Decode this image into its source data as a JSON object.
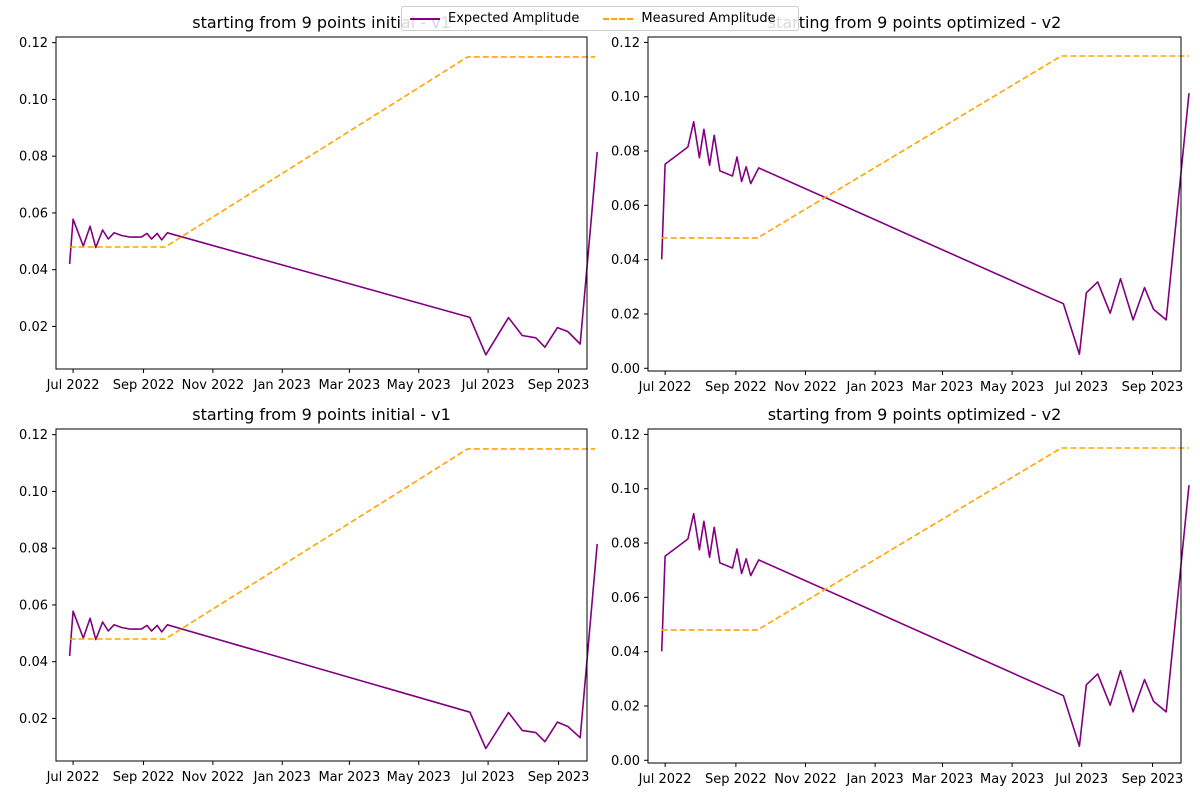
{
  "colors": {
    "expected": "#800080",
    "measured": "#FFA500"
  },
  "legend": {
    "expected_label": "Expected Amplitude",
    "measured_label": "Measured Amplitude",
    "placement": "top-center"
  },
  "chart_data": [
    {
      "type": "line",
      "title": "starting from 9 points initial - v1",
      "xlabel": "",
      "ylabel": "",
      "x_ticks": [
        "Jul 2022",
        "Sep 2022",
        "Nov 2022",
        "Jan 2023",
        "Mar 2023",
        "May 2023",
        "Jul 2023",
        "Sep 2023"
      ],
      "y_ticks": [
        "0.02",
        "0.04",
        "0.06",
        "0.08",
        "0.10",
        "0.12"
      ],
      "xlim": [
        "2022-06-16",
        "2023-09-26"
      ],
      "ylim": [
        0.005,
        0.122
      ],
      "grid": false,
      "series": [
        {
          "name": "Expected Amplitude",
          "style": "solid",
          "points": [
            [
              "2022-06-28",
              0.042
            ],
            [
              "2022-07-01",
              0.0578
            ],
            [
              "2022-07-10",
              0.0483
            ],
            [
              "2022-07-16",
              0.0553
            ],
            [
              "2022-07-21",
              0.0478
            ],
            [
              "2022-07-27",
              0.054
            ],
            [
              "2022-08-01",
              0.0508
            ],
            [
              "2022-08-06",
              0.053
            ],
            [
              "2022-08-13",
              0.052
            ],
            [
              "2022-08-20",
              0.0515
            ],
            [
              "2022-08-30",
              0.0515
            ],
            [
              "2022-09-04",
              0.0528
            ],
            [
              "2022-09-08",
              0.0508
            ],
            [
              "2022-09-13",
              0.0528
            ],
            [
              "2022-09-17",
              0.0505
            ],
            [
              "2022-09-22",
              0.053
            ],
            [
              "2023-06-15",
              0.0232
            ],
            [
              "2023-06-29",
              0.01
            ],
            [
              "2023-07-19",
              0.0231
            ],
            [
              "2023-07-31",
              0.0168
            ],
            [
              "2023-08-12",
              0.016
            ],
            [
              "2023-08-20",
              0.0127
            ],
            [
              "2023-08-31",
              0.0196
            ],
            [
              "2023-09-09",
              0.0182
            ],
            [
              "2023-09-20",
              0.0138
            ],
            [
              "2023-10-05",
              0.0815
            ]
          ]
        },
        {
          "name": "Measured Amplitude",
          "style": "dashed",
          "points": [
            [
              "2022-06-28",
              0.048
            ],
            [
              "2022-09-20",
              0.048
            ],
            [
              "2023-06-13",
              0.115
            ],
            [
              "2023-10-03",
              0.115
            ]
          ]
        }
      ]
    },
    {
      "type": "line",
      "title": "starting from 9 points optimized - v2",
      "xlabel": "",
      "ylabel": "",
      "x_ticks": [
        "Jul 2022",
        "Sep 2022",
        "Nov 2022",
        "Jan 2023",
        "Mar 2023",
        "May 2023",
        "Jul 2023",
        "Sep 2023"
      ],
      "y_ticks": [
        "0.00",
        "0.02",
        "0.04",
        "0.06",
        "0.08",
        "0.10",
        "0.12"
      ],
      "xlim": [
        "2022-06-16",
        "2023-09-26"
      ],
      "ylim": [
        -0.001,
        0.122
      ],
      "grid": false,
      "series": [
        {
          "name": "Expected Amplitude",
          "style": "solid",
          "points": [
            [
              "2022-06-28",
              0.0401
            ],
            [
              "2022-07-01",
              0.0752
            ],
            [
              "2022-07-21",
              0.0815
            ],
            [
              "2022-07-26",
              0.0908
            ],
            [
              "2022-07-31",
              0.0775
            ],
            [
              "2022-08-04",
              0.088
            ],
            [
              "2022-08-09",
              0.0748
            ],
            [
              "2022-08-13",
              0.0858
            ],
            [
              "2022-08-18",
              0.0727
            ],
            [
              "2022-08-29",
              0.0708
            ],
            [
              "2022-09-02",
              0.0778
            ],
            [
              "2022-09-06",
              0.0688
            ],
            [
              "2022-09-10",
              0.0742
            ],
            [
              "2022-09-14",
              0.068
            ],
            [
              "2022-09-21",
              0.0738
            ],
            [
              "2023-06-15",
              0.0238
            ],
            [
              "2023-06-29",
              0.0052
            ],
            [
              "2023-07-05",
              0.0278
            ],
            [
              "2023-07-15",
              0.0318
            ],
            [
              "2023-07-26",
              0.0203
            ],
            [
              "2023-08-04",
              0.033
            ],
            [
              "2023-08-15",
              0.0178
            ],
            [
              "2023-08-25",
              0.0297
            ],
            [
              "2023-09-02",
              0.0217
            ],
            [
              "2023-09-13",
              0.0178
            ],
            [
              "2023-10-03",
              0.1013
            ]
          ]
        },
        {
          "name": "Measured Amplitude",
          "style": "dashed",
          "points": [
            [
              "2022-06-28",
              0.048
            ],
            [
              "2022-09-20",
              0.048
            ],
            [
              "2023-06-13",
              0.115
            ],
            [
              "2023-10-03",
              0.115
            ]
          ]
        }
      ]
    },
    {
      "type": "line",
      "title": "starting from 9 points initial - v1",
      "xlabel": "",
      "ylabel": "",
      "x_ticks": [
        "Jul 2022",
        "Sep 2022",
        "Nov 2022",
        "Jan 2023",
        "Mar 2023",
        "May 2023",
        "Jul 2023",
        "Sep 2023"
      ],
      "y_ticks": [
        "0.02",
        "0.04",
        "0.06",
        "0.08",
        "0.10",
        "0.12"
      ],
      "xlim": [
        "2022-06-16",
        "2023-09-26"
      ],
      "ylim": [
        0.005,
        0.122
      ],
      "grid": false,
      "series": [
        {
          "name": "Expected Amplitude",
          "style": "solid",
          "points": [
            [
              "2022-06-28",
              0.042
            ],
            [
              "2022-07-01",
              0.0578
            ],
            [
              "2022-07-10",
              0.0483
            ],
            [
              "2022-07-16",
              0.0553
            ],
            [
              "2022-07-21",
              0.0478
            ],
            [
              "2022-07-27",
              0.054
            ],
            [
              "2022-08-01",
              0.0508
            ],
            [
              "2022-08-06",
              0.053
            ],
            [
              "2022-08-13",
              0.052
            ],
            [
              "2022-08-20",
              0.0515
            ],
            [
              "2022-08-30",
              0.0515
            ],
            [
              "2022-09-04",
              0.0528
            ],
            [
              "2022-09-08",
              0.0508
            ],
            [
              "2022-09-13",
              0.0528
            ],
            [
              "2022-09-17",
              0.0505
            ],
            [
              "2022-09-22",
              0.053
            ],
            [
              "2023-06-15",
              0.0222
            ],
            [
              "2023-06-29",
              0.0094
            ],
            [
              "2023-07-19",
              0.0221
            ],
            [
              "2023-07-31",
              0.0158
            ],
            [
              "2023-08-12",
              0.015
            ],
            [
              "2023-08-20",
              0.0118
            ],
            [
              "2023-08-31",
              0.0187
            ],
            [
              "2023-09-09",
              0.0172
            ],
            [
              "2023-09-20",
              0.0132
            ],
            [
              "2023-10-05",
              0.0815
            ]
          ]
        },
        {
          "name": "Measured Amplitude",
          "style": "dashed",
          "points": [
            [
              "2022-06-28",
              0.048
            ],
            [
              "2022-09-20",
              0.048
            ],
            [
              "2023-06-13",
              0.115
            ],
            [
              "2023-10-03",
              0.115
            ]
          ]
        }
      ]
    },
    {
      "type": "line",
      "title": "starting from 9 points optimized - v2",
      "xlabel": "",
      "ylabel": "",
      "x_ticks": [
        "Jul 2022",
        "Sep 2022",
        "Nov 2022",
        "Jan 2023",
        "Mar 2023",
        "May 2023",
        "Jul 2023",
        "Sep 2023"
      ],
      "y_ticks": [
        "0.00",
        "0.02",
        "0.04",
        "0.06",
        "0.08",
        "0.10",
        "0.12"
      ],
      "xlim": [
        "2022-06-16",
        "2023-09-26"
      ],
      "ylim": [
        -0.001,
        0.122
      ],
      "grid": false,
      "series": [
        {
          "name": "Expected Amplitude",
          "style": "solid",
          "points": [
            [
              "2022-06-28",
              0.0401
            ],
            [
              "2022-07-01",
              0.0752
            ],
            [
              "2022-07-21",
              0.0815
            ],
            [
              "2022-07-26",
              0.0908
            ],
            [
              "2022-07-31",
              0.0775
            ],
            [
              "2022-08-04",
              0.088
            ],
            [
              "2022-08-09",
              0.0748
            ],
            [
              "2022-08-13",
              0.0858
            ],
            [
              "2022-08-18",
              0.0727
            ],
            [
              "2022-08-29",
              0.0708
            ],
            [
              "2022-09-02",
              0.0778
            ],
            [
              "2022-09-06",
              0.0688
            ],
            [
              "2022-09-10",
              0.0742
            ],
            [
              "2022-09-14",
              0.068
            ],
            [
              "2022-09-21",
              0.0738
            ],
            [
              "2023-06-15",
              0.0238
            ],
            [
              "2023-06-29",
              0.0052
            ],
            [
              "2023-07-05",
              0.0278
            ],
            [
              "2023-07-15",
              0.0318
            ],
            [
              "2023-07-26",
              0.0203
            ],
            [
              "2023-08-04",
              0.033
            ],
            [
              "2023-08-15",
              0.0178
            ],
            [
              "2023-08-25",
              0.0297
            ],
            [
              "2023-09-02",
              0.0217
            ],
            [
              "2023-09-13",
              0.0178
            ],
            [
              "2023-10-03",
              0.1013
            ]
          ]
        },
        {
          "name": "Measured Amplitude",
          "style": "dashed",
          "points": [
            [
              "2022-06-28",
              0.048
            ],
            [
              "2022-09-20",
              0.048
            ],
            [
              "2023-06-13",
              0.115
            ],
            [
              "2023-10-03",
              0.115
            ]
          ]
        }
      ]
    }
  ]
}
